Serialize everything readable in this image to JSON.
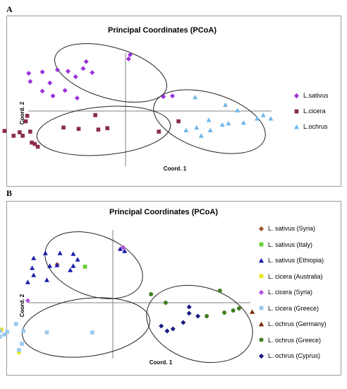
{
  "panels": [
    {
      "letter": "A",
      "chart_data": {
        "type": "scatter",
        "title": "Principal Coordinates (PCoA)",
        "xlabel": "Coord. 1",
        "ylabel": "Coord. 2",
        "xlim": [
          -1,
          1
        ],
        "ylim": [
          -1,
          1
        ],
        "legend_position": "right",
        "grid": false,
        "series": [
          {
            "name": "L.sativus",
            "marker": "diamond",
            "color": "#9b30d9",
            "points": [
              [
                0.02,
                0.76
              ],
              [
                -0.64,
                0.55
              ],
              [
                -0.55,
                0.57
              ],
              [
                -0.45,
                0.6
              ],
              [
                -0.38,
                0.58
              ],
              [
                -0.28,
                0.62
              ],
              [
                -0.26,
                0.72
              ],
              [
                -0.63,
                0.43
              ],
              [
                -0.5,
                0.41
              ],
              [
                -0.4,
                0.3
              ],
              [
                -0.33,
                0.5
              ],
              [
                -0.22,
                0.56
              ],
              [
                -0.48,
                0.22
              ],
              [
                -0.55,
                0.29
              ],
              [
                -0.32,
                0.19
              ],
              [
                0.03,
                0.82
              ],
              [
                0.31,
                0.22
              ],
              [
                0.25,
                0.21
              ]
            ]
          },
          {
            "name": "L.cicera",
            "marker": "square",
            "color": "#8b2a4f",
            "points": [
              [
                -0.65,
                -0.07
              ],
              [
                -0.66,
                -0.15
              ],
              [
                -0.7,
                -0.31
              ],
              [
                -0.8,
                -0.29
              ],
              [
                -0.68,
                -0.36
              ],
              [
                -0.74,
                -0.36
              ],
              [
                -0.63,
                -0.3
              ],
              [
                -0.58,
                -0.52
              ],
              [
                -0.6,
                -0.48
              ],
              [
                -0.62,
                -0.46
              ],
              [
                -0.41,
                -0.24
              ],
              [
                -0.31,
                -0.26
              ],
              [
                -0.18,
                -0.27
              ],
              [
                -0.12,
                -0.25
              ],
              [
                0.22,
                -0.3
              ],
              [
                -0.2,
                -0.06
              ],
              [
                0.35,
                -0.15
              ]
            ]
          },
          {
            "name": "L.ochrus",
            "marker": "triangle",
            "color": "#6fb6e8",
            "points": [
              [
                0.66,
                0.09
              ],
              [
                0.74,
                0.01
              ],
              [
                0.55,
                -0.13
              ],
              [
                0.64,
                -0.2
              ],
              [
                0.56,
                -0.28
              ],
              [
                0.47,
                -0.24
              ],
              [
                0.4,
                -0.28
              ],
              [
                0.5,
                -0.36
              ],
              [
                0.87,
                -0.11
              ],
              [
                0.91,
                -0.06
              ],
              [
                0.96,
                -0.11
              ],
              [
                0.78,
                -0.17
              ],
              [
                0.68,
                -0.18
              ],
              [
                0.46,
                0.2
              ]
            ]
          }
        ]
      }
    },
    {
      "letter": "B",
      "chart_data": {
        "type": "scatter",
        "title": "Principal Coordinates (PCoA)",
        "xlabel": "Coord. 1",
        "ylabel": "Coord. 2",
        "xlim": [
          -1,
          1
        ],
        "ylim": [
          -1,
          1
        ],
        "legend_position": "right",
        "grid": false,
        "series": [
          {
            "name": "L. sativus (Syria)",
            "marker": "diamond",
            "color": "#a0522d",
            "points": [
              [
                -0.38,
                0.54
              ]
            ]
          },
          {
            "name": "L. sativus  (Italy)",
            "marker": "square",
            "color": "#66cc33",
            "points": [
              [
                -0.19,
                0.51
              ]
            ]
          },
          {
            "name": "L. sativus (Ethiopia)",
            "marker": "triangle",
            "color": "#1a1aaa",
            "points": [
              [
                -0.54,
                0.63
              ],
              [
                -0.46,
                0.7
              ],
              [
                -0.36,
                0.7
              ],
              [
                -0.27,
                0.69
              ],
              [
                -0.24,
                0.61
              ],
              [
                -0.38,
                0.53
              ],
              [
                -0.43,
                0.52
              ],
              [
                -0.55,
                0.49
              ],
              [
                -0.54,
                0.39
              ],
              [
                -0.29,
                0.46
              ],
              [
                -0.27,
                0.52
              ],
              [
                -0.45,
                0.32
              ],
              [
                -0.58,
                0.29
              ],
              [
                0.08,
                0.73
              ],
              [
                0.05,
                0.76
              ]
            ]
          },
          {
            "name": "L. cicera (Australia)",
            "marker": "square",
            "color": "#e6e620",
            "points": [
              [
                -0.76,
                -0.38
              ],
              [
                -0.64,
                -0.7
              ]
            ]
          },
          {
            "name": "L. cicera (Syria)",
            "marker": "diamond",
            "color": "#b44fdc",
            "points": [
              [
                -0.58,
                0.03
              ],
              [
                0.07,
                0.78
              ]
            ]
          },
          {
            "name": "L. cicera (Greece)",
            "marker": "square",
            "color": "#99c9ee",
            "points": [
              [
                -0.87,
                -0.54
              ],
              [
                -0.77,
                -0.48
              ],
              [
                -0.74,
                -0.45
              ],
              [
                -0.72,
                -0.41
              ],
              [
                -0.66,
                -0.3
              ],
              [
                -0.61,
                -0.4
              ],
              [
                -0.45,
                -0.42
              ],
              [
                -0.62,
                -0.58
              ],
              [
                -0.64,
                -0.67
              ],
              [
                -0.14,
                -0.42
              ],
              [
                -0.77,
                -0.4
              ]
            ]
          },
          {
            "name": "L. ochrus (Germany)",
            "marker": "triangle",
            "color": "#7a2200",
            "points": [
              [
                0.95,
                -0.13
              ]
            ]
          },
          {
            "name": "L. ochrus (Greece)",
            "marker": "circle",
            "color": "#3f7f1f",
            "points": [
              [
                0.73,
                0.17
              ],
              [
                0.86,
                -0.08
              ],
              [
                0.82,
                -0.11
              ],
              [
                0.76,
                -0.14
              ],
              [
                0.64,
                -0.19
              ],
              [
                0.26,
                0.12
              ],
              [
                0.36,
                0.0
              ]
            ]
          },
          {
            "name": "L. ochrus (Cyprus)",
            "marker": "diamond",
            "color": "#1a1a80",
            "points": [
              [
                0.52,
                -0.06
              ],
              [
                0.52,
                -0.15
              ],
              [
                0.48,
                -0.28
              ],
              [
                0.41,
                -0.37
              ],
              [
                0.37,
                -0.4
              ],
              [
                0.33,
                -0.33
              ],
              [
                0.58,
                -0.19
              ]
            ]
          }
        ],
        "ellipses_note": ""
      }
    }
  ]
}
